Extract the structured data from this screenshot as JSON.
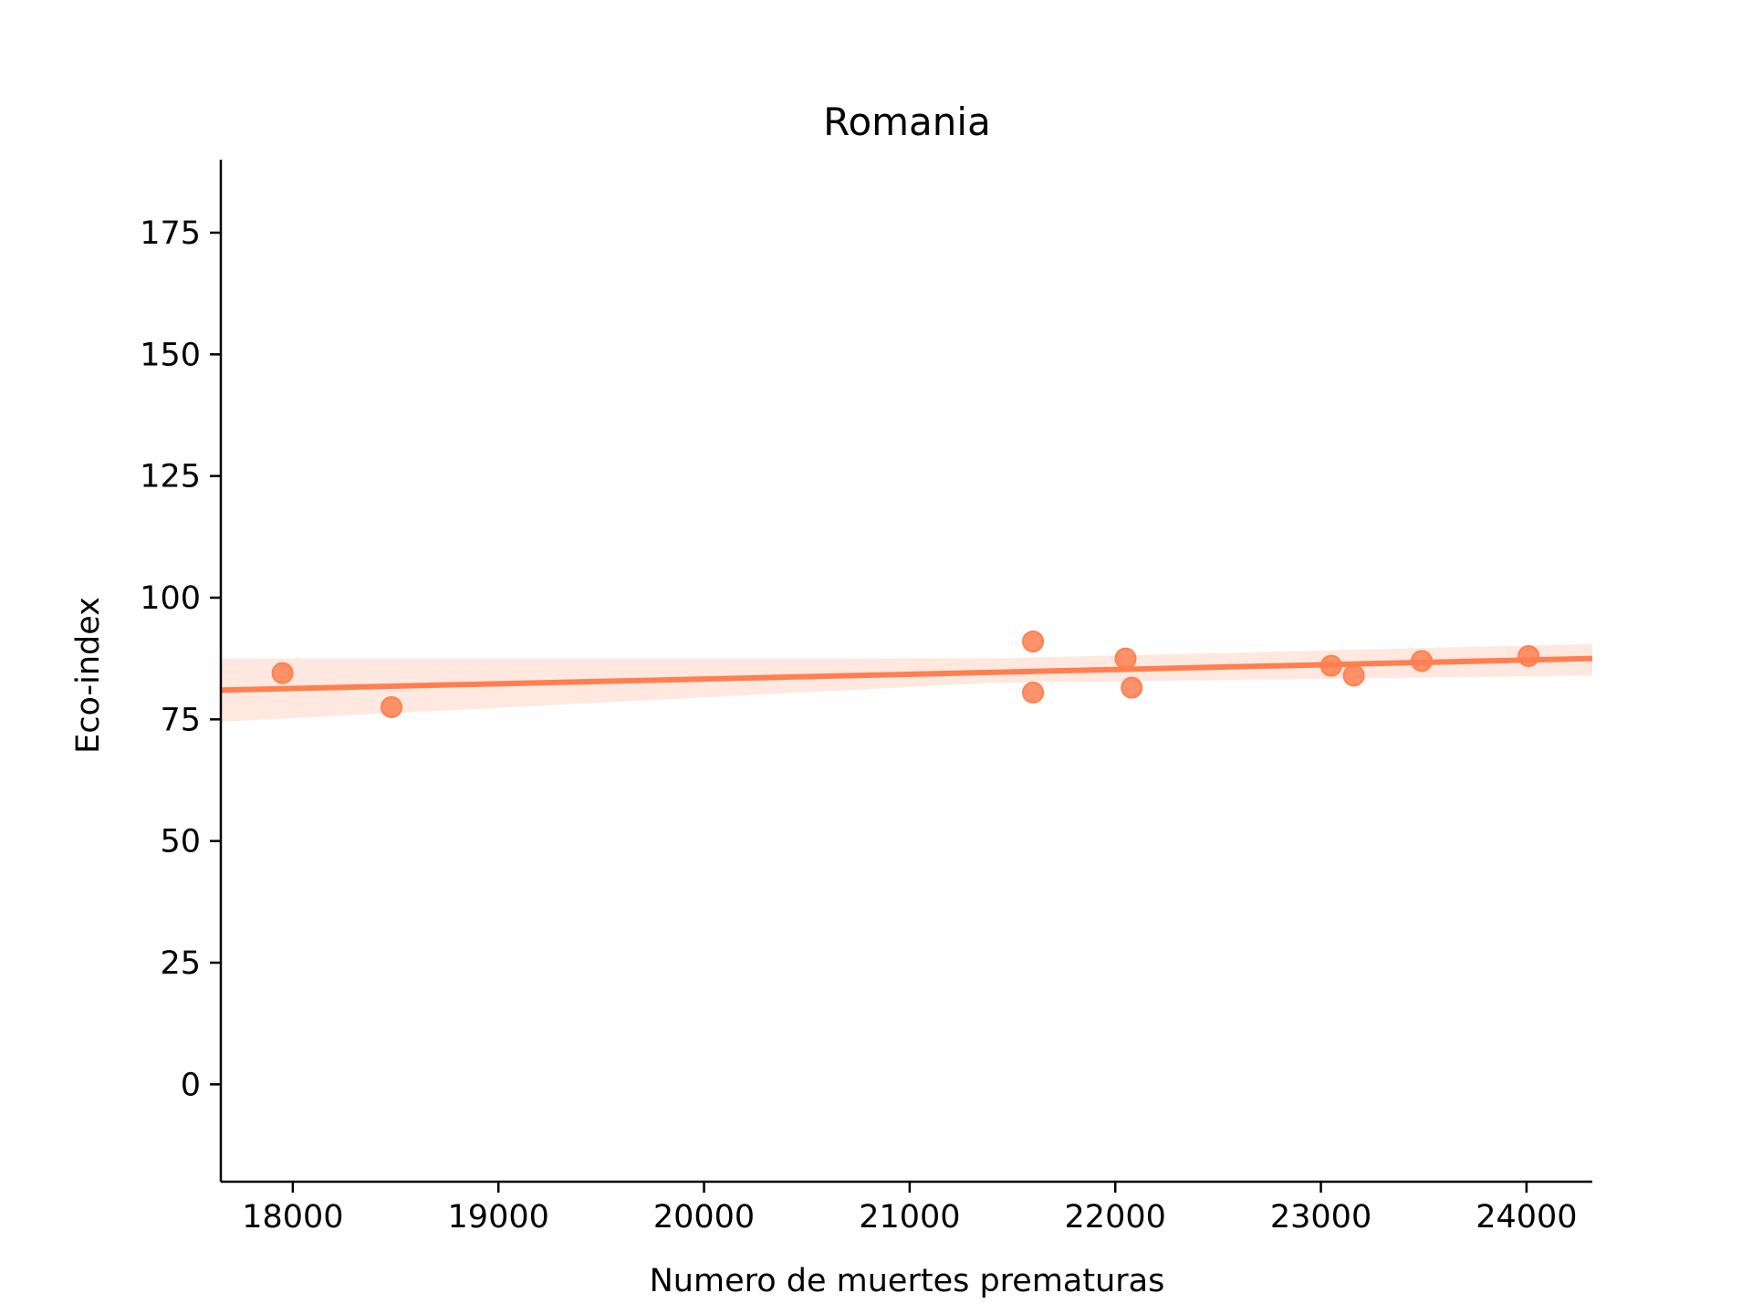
{
  "chart_data": {
    "type": "scatter",
    "title": "Romania",
    "xlabel": "Numero de muertes prematuras",
    "ylabel": "Eco-index",
    "xlim": [
      17650,
      24320
    ],
    "ylim": [
      -20,
      190
    ],
    "xticks": [
      18000,
      19000,
      20000,
      21000,
      22000,
      23000,
      24000
    ],
    "yticks": [
      0,
      25,
      50,
      75,
      100,
      125,
      150,
      175
    ],
    "grid": false,
    "legend": "none",
    "colors": {
      "points": "#ff7f50",
      "line": "#ff7f50",
      "band": "#ff7f50"
    },
    "points": [
      {
        "x": 17950,
        "y": 84.5
      },
      {
        "x": 18480,
        "y": 77.5
      },
      {
        "x": 21600,
        "y": 91.0
      },
      {
        "x": 21600,
        "y": 80.5
      },
      {
        "x": 22050,
        "y": 87.5
      },
      {
        "x": 22080,
        "y": 81.5
      },
      {
        "x": 23050,
        "y": 86.0
      },
      {
        "x": 23160,
        "y": 84.0
      },
      {
        "x": 23490,
        "y": 87.0
      },
      {
        "x": 24010,
        "y": 88.0
      }
    ],
    "regression": {
      "x": [
        17650,
        24320
      ],
      "y": [
        81.0,
        87.5
      ],
      "band_upper": [
        87.5,
        90.5
      ],
      "band_lower": [
        74.5,
        84.0
      ],
      "band_mid_x": 21400,
      "band_mid_upper": 87.5,
      "band_mid_lower": 82.5
    }
  }
}
